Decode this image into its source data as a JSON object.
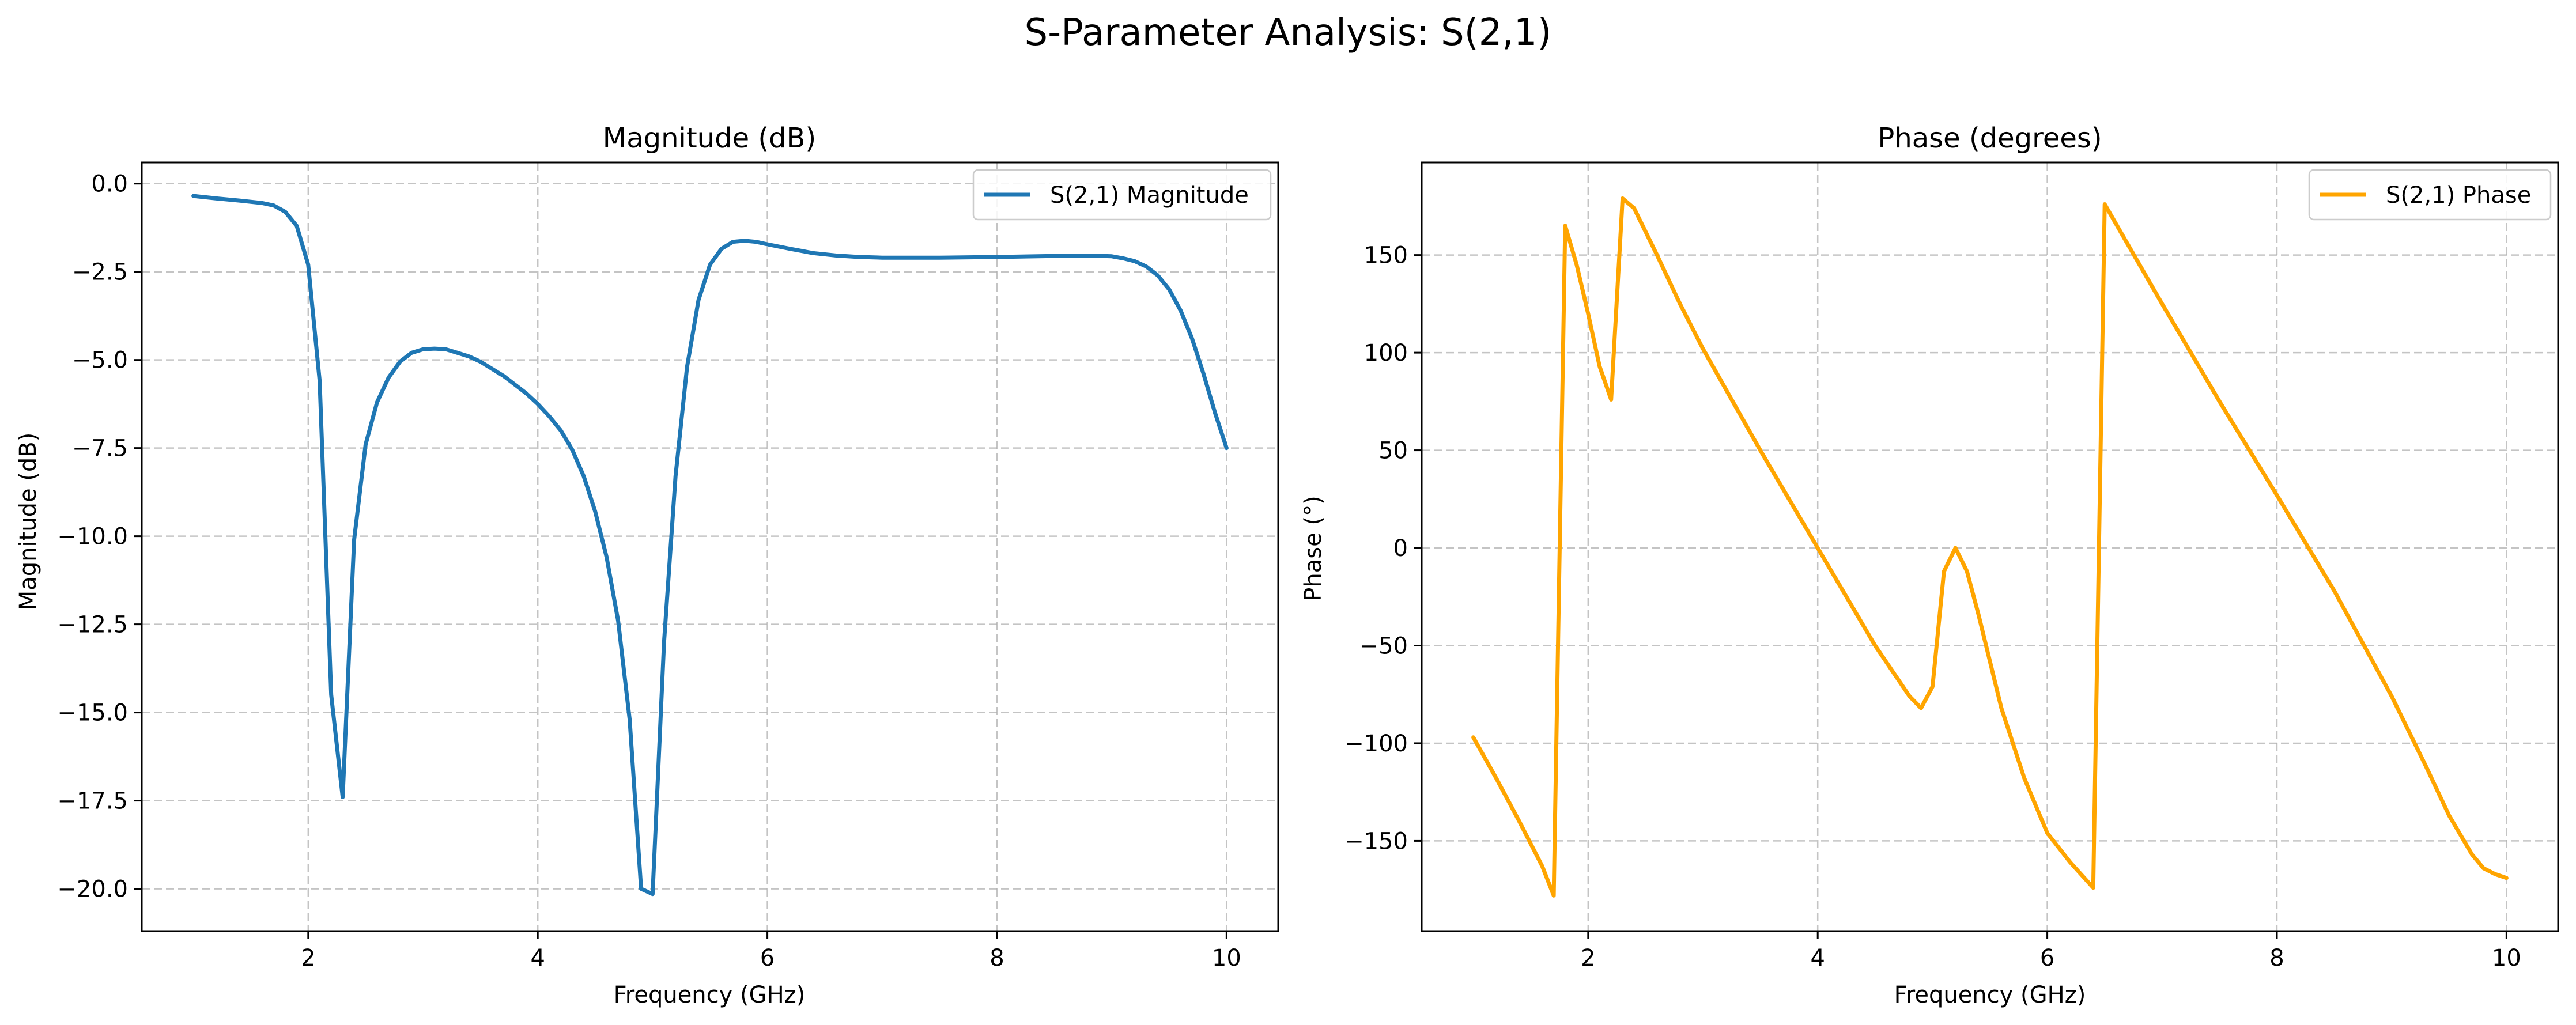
{
  "figure": {
    "title": "S-Parameter Analysis: S(2,1)"
  },
  "colors": {
    "magnitude": "#1f77b4",
    "phase": "#ffa500",
    "grid": "#b0b0b0",
    "axis": "#000000"
  },
  "chart_data": [
    {
      "type": "line",
      "title": "Magnitude (dB)",
      "xlabel": "Frequency (GHz)",
      "ylabel": "Magnitude (dB)",
      "xlim": [
        0.55,
        10.45
      ],
      "ylim": [
        -21.2,
        0.6
      ],
      "xticks": [
        2,
        4,
        6,
        8,
        10
      ],
      "xtick_labels": [
        "2",
        "4",
        "6",
        "8",
        "10"
      ],
      "yticks": [
        0.0,
        -2.5,
        -5.0,
        -7.5,
        -10.0,
        -12.5,
        -15.0,
        -17.5,
        -20.0
      ],
      "ytick_labels": [
        "0.0",
        "−2.5",
        "−5.0",
        "−7.5",
        "−10.0",
        "−12.5",
        "−15.0",
        "−17.5",
        "−20.0"
      ],
      "grid": true,
      "legend_position": "top-right",
      "series": [
        {
          "name": "S(2,1) Magnitude",
          "color": "#1f77b4",
          "x": [
            1.0,
            1.2,
            1.4,
            1.6,
            1.7,
            1.8,
            1.9,
            2.0,
            2.1,
            2.2,
            2.3,
            2.4,
            2.5,
            2.6,
            2.7,
            2.8,
            2.9,
            3.0,
            3.1,
            3.2,
            3.3,
            3.4,
            3.5,
            3.6,
            3.7,
            3.8,
            3.9,
            4.0,
            4.1,
            4.2,
            4.3,
            4.4,
            4.5,
            4.6,
            4.7,
            4.8,
            4.9,
            5.0,
            5.1,
            5.2,
            5.3,
            5.4,
            5.5,
            5.6,
            5.7,
            5.8,
            5.9,
            6.0,
            6.2,
            6.4,
            6.6,
            6.8,
            7.0,
            7.5,
            8.0,
            8.5,
            8.8,
            9.0,
            9.1,
            9.2,
            9.3,
            9.4,
            9.5,
            9.6,
            9.7,
            9.8,
            9.9,
            10.0
          ],
          "y": [
            -0.35,
            -0.42,
            -0.48,
            -0.55,
            -0.62,
            -0.8,
            -1.2,
            -2.3,
            -5.6,
            -14.5,
            -17.4,
            -10.1,
            -7.4,
            -6.2,
            -5.5,
            -5.05,
            -4.8,
            -4.7,
            -4.68,
            -4.7,
            -4.8,
            -4.9,
            -5.05,
            -5.25,
            -5.45,
            -5.7,
            -5.95,
            -6.25,
            -6.6,
            -7.0,
            -7.55,
            -8.3,
            -9.3,
            -10.6,
            -12.4,
            -15.2,
            -20.0,
            -20.15,
            -13.0,
            -8.3,
            -5.2,
            -3.3,
            -2.3,
            -1.85,
            -1.65,
            -1.62,
            -1.65,
            -1.72,
            -1.85,
            -1.97,
            -2.04,
            -2.08,
            -2.1,
            -2.1,
            -2.08,
            -2.05,
            -2.04,
            -2.06,
            -2.12,
            -2.2,
            -2.35,
            -2.6,
            -3.0,
            -3.6,
            -4.4,
            -5.4,
            -6.5,
            -7.5
          ]
        }
      ]
    },
    {
      "type": "line",
      "title": "Phase (degrees)",
      "xlabel": "Frequency (GHz)",
      "ylabel": "Phase (°)",
      "xlim": [
        0.55,
        10.45
      ],
      "ylim": [
        -196.2,
        197.4
      ],
      "xticks": [
        2,
        4,
        6,
        8,
        10
      ],
      "xtick_labels": [
        "2",
        "4",
        "6",
        "8",
        "10"
      ],
      "yticks": [
        150,
        100,
        50,
        0,
        -50,
        -100,
        -150
      ],
      "ytick_labels": [
        "150",
        "100",
        "50",
        "0",
        "−50",
        "−100",
        "−150"
      ],
      "grid": true,
      "legend_position": "top-right",
      "series": [
        {
          "name": "S(2,1) Phase",
          "color": "#ffa500",
          "x": [
            1.0,
            1.2,
            1.4,
            1.6,
            1.7,
            1.8,
            1.9,
            2.0,
            2.1,
            2.2,
            2.3,
            2.4,
            2.6,
            2.8,
            3.0,
            3.5,
            4.0,
            4.5,
            4.8,
            4.9,
            5.0,
            5.1,
            5.2,
            5.3,
            5.4,
            5.6,
            5.8,
            6.0,
            6.2,
            6.4,
            6.5,
            7.0,
            7.5,
            8.0,
            8.5,
            9.0,
            9.3,
            9.5,
            9.7,
            9.8,
            9.9,
            10.0
          ],
          "y": [
            -97,
            -118,
            -140,
            -163,
            -178,
            165,
            145,
            120,
            93,
            76,
            179,
            174,
            150,
            125,
            102,
            50,
            0,
            -50,
            -76,
            -82,
            -71,
            -12,
            0,
            -12,
            -34,
            -82,
            -118,
            -146,
            -161,
            -174,
            176,
            125,
            75,
            27,
            -22,
            -76,
            -112,
            -137,
            -157,
            -164,
            -167,
            -169
          ]
        }
      ]
    }
  ]
}
